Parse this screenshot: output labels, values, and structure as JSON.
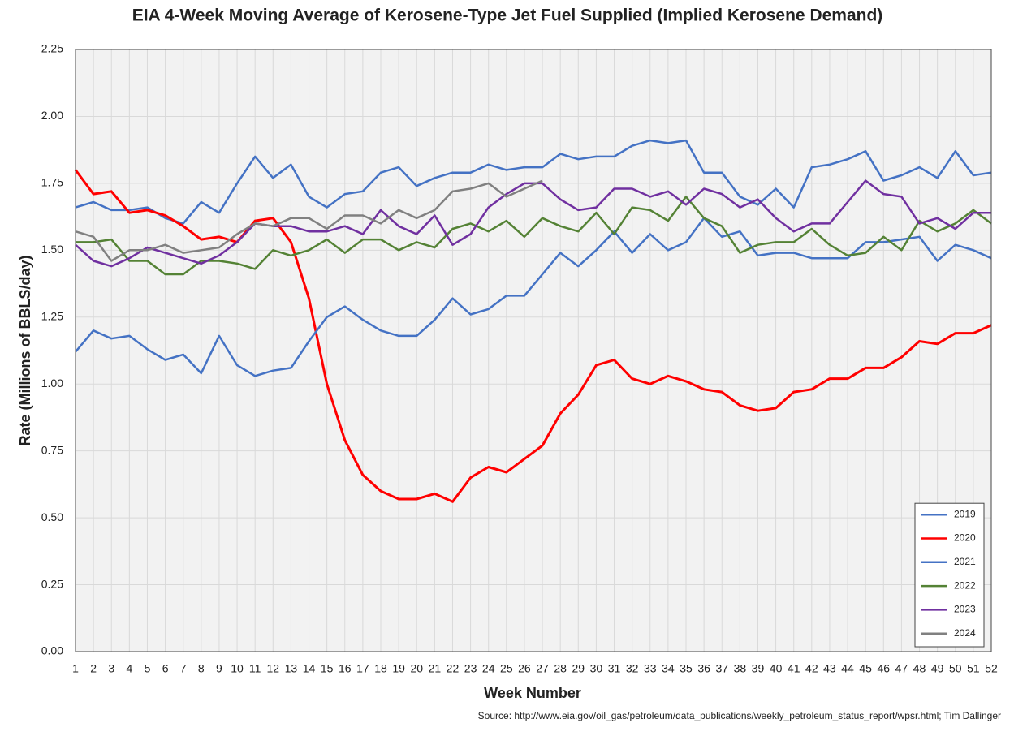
{
  "chart_data": {
    "type": "line",
    "title": "EIA 4-Week Moving Average of Kerosene-Type Jet Fuel Supplied (Implied Kerosene Demand)",
    "x_label": "Week Number",
    "y_label": "Rate (Millions of BBLS/day)",
    "source": "Source: http://www.eia.gov/oil_gas/petroleum/data_publications/weekly_petroleum_status_report/wpsr.html; Tim Dallinger",
    "categories": [
      1,
      2,
      3,
      4,
      5,
      6,
      7,
      8,
      9,
      10,
      11,
      12,
      13,
      14,
      15,
      16,
      17,
      18,
      19,
      20,
      21,
      22,
      23,
      24,
      25,
      26,
      27,
      28,
      29,
      30,
      31,
      32,
      33,
      34,
      35,
      36,
      37,
      38,
      39,
      40,
      41,
      42,
      43,
      44,
      45,
      46,
      47,
      48,
      49,
      50,
      51,
      52
    ],
    "ylim": [
      0,
      2.25
    ],
    "yticks": [
      {
        "value": 0,
        "label": "0.00"
      },
      {
        "value": 0.25,
        "label": "0.25"
      },
      {
        "value": 0.5,
        "label": "0.50"
      },
      {
        "value": 0.75,
        "label": "0.75"
      },
      {
        "value": 1,
        "label": "1.00"
      },
      {
        "value": 1.25,
        "label": "1.25"
      },
      {
        "value": 1.5,
        "label": "1.50"
      },
      {
        "value": 1.75,
        "label": "1.75"
      },
      {
        "value": 2,
        "label": "2.00"
      },
      {
        "value": 2.25,
        "label": "2.25"
      }
    ],
    "grid": true,
    "legend": "lower right",
    "series": [
      {
        "name": "2019",
        "color": "#4472c4",
        "values": [
          1.66,
          1.68,
          1.65,
          1.65,
          1.66,
          1.62,
          1.6,
          1.68,
          1.64,
          1.75,
          1.85,
          1.77,
          1.82,
          1.7,
          1.66,
          1.71,
          1.72,
          1.79,
          1.81,
          1.74,
          1.77,
          1.79,
          1.79,
          1.82,
          1.8,
          1.81,
          1.81,
          1.86,
          1.84,
          1.85,
          1.85,
          1.89,
          1.91,
          1.9,
          1.91,
          1.79,
          1.79,
          1.7,
          1.67,
          1.73,
          1.66,
          1.81,
          1.82,
          1.84,
          1.87,
          1.76,
          1.78,
          1.81,
          1.77,
          1.87,
          1.78,
          1.79
        ]
      },
      {
        "name": "2020",
        "color": "#ff0000",
        "values": [
          1.8,
          1.71,
          1.72,
          1.64,
          1.65,
          1.63,
          1.59,
          1.54,
          1.55,
          1.53,
          1.61,
          1.62,
          1.53,
          1.32,
          1.0,
          0.79,
          0.66,
          0.6,
          0.57,
          0.57,
          0.59,
          0.56,
          0.65,
          0.69,
          0.67,
          0.72,
          0.77,
          0.89,
          0.96,
          1.07,
          1.09,
          1.02,
          1.0,
          1.03,
          1.01,
          0.98,
          0.97,
          0.92,
          0.9,
          0.91,
          0.97,
          0.98,
          1.02,
          1.02,
          1.06,
          1.06,
          1.1,
          1.16,
          1.15,
          1.19,
          1.19,
          1.22
        ]
      },
      {
        "name": "2021",
        "color": "#4472c4",
        "values": [
          1.12,
          1.2,
          1.17,
          1.18,
          1.13,
          1.09,
          1.11,
          1.04,
          1.18,
          1.07,
          1.03,
          1.05,
          1.06,
          1.16,
          1.25,
          1.29,
          1.24,
          1.2,
          1.18,
          1.18,
          1.24,
          1.32,
          1.26,
          1.28,
          1.33,
          1.33,
          1.41,
          1.49,
          1.44,
          1.5,
          1.57,
          1.49,
          1.56,
          1.5,
          1.53,
          1.62,
          1.55,
          1.57,
          1.48,
          1.49,
          1.49,
          1.47,
          1.47,
          1.47,
          1.53,
          1.53,
          1.54,
          1.55,
          1.46,
          1.52,
          1.5,
          1.47
        ]
      },
      {
        "name": "2022",
        "color": "#548235",
        "values": [
          1.53,
          1.53,
          1.54,
          1.46,
          1.46,
          1.41,
          1.41,
          1.46,
          1.46,
          1.45,
          1.43,
          1.5,
          1.48,
          1.5,
          1.54,
          1.49,
          1.54,
          1.54,
          1.5,
          1.53,
          1.51,
          1.58,
          1.6,
          1.57,
          1.61,
          1.55,
          1.62,
          1.59,
          1.57,
          1.64,
          1.56,
          1.66,
          1.65,
          1.61,
          1.7,
          1.62,
          1.59,
          1.49,
          1.52,
          1.53,
          1.53,
          1.58,
          1.52,
          1.48,
          1.49,
          1.55,
          1.5,
          1.61,
          1.57,
          1.6,
          1.65,
          1.6
        ]
      },
      {
        "name": "2023",
        "color": "#7030a0",
        "values": [
          1.52,
          1.46,
          1.44,
          1.47,
          1.51,
          1.49,
          1.47,
          1.45,
          1.48,
          1.53,
          1.6,
          1.59,
          1.59,
          1.57,
          1.57,
          1.59,
          1.56,
          1.65,
          1.59,
          1.56,
          1.63,
          1.52,
          1.56,
          1.66,
          1.71,
          1.75,
          1.75,
          1.69,
          1.65,
          1.66,
          1.73,
          1.73,
          1.7,
          1.72,
          1.67,
          1.73,
          1.71,
          1.66,
          1.69,
          1.62,
          1.57,
          1.6,
          1.6,
          1.68,
          1.76,
          1.71,
          1.7,
          1.6,
          1.62,
          1.58,
          1.64,
          1.64
        ]
      },
      {
        "name": "2024",
        "color": "#808080",
        "values": [
          1.57,
          1.55,
          1.46,
          1.5,
          1.5,
          1.52,
          1.49,
          1.5,
          1.51,
          1.56,
          1.6,
          1.59,
          1.62,
          1.62,
          1.58,
          1.63,
          1.63,
          1.6,
          1.65,
          1.62,
          1.65,
          1.72,
          1.73,
          1.75,
          1.7,
          1.73,
          1.76,
          null,
          null,
          null,
          null,
          null,
          null,
          null,
          null,
          null,
          null,
          null,
          null,
          null,
          null,
          null,
          null,
          null,
          null,
          null,
          null,
          null,
          null,
          null,
          null,
          null
        ]
      }
    ]
  }
}
